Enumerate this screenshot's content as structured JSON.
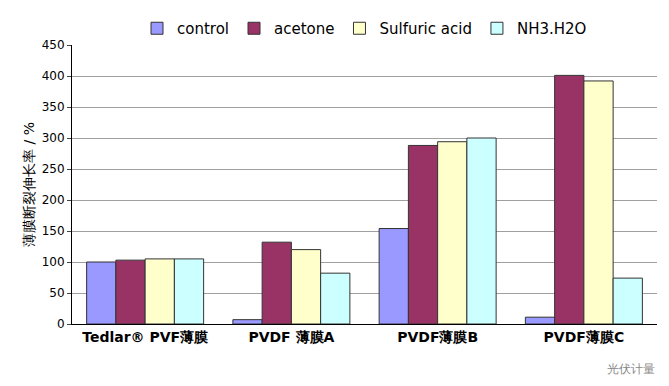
{
  "chart_data": {
    "type": "bar",
    "y_label": "薄膜断裂伸长率 / %",
    "categories": [
      "Tedlar® PVF薄膜",
      "PVDF 薄膜A",
      "PVDF薄膜B",
      "PVDF薄膜C"
    ],
    "series": [
      {
        "name": "control",
        "color": "#9999ff",
        "values": [
          100,
          7,
          154,
          11
        ]
      },
      {
        "name": "acetone",
        "color": "#993366",
        "values": [
          103,
          132,
          288,
          401
        ]
      },
      {
        "name": "Sulfuric acid",
        "color": "#ffffcc",
        "values": [
          105,
          120,
          294,
          392
        ]
      },
      {
        "name": "NH3.H2O",
        "color": "#ccffff",
        "values": [
          105,
          82,
          300,
          74
        ]
      }
    ],
    "ylim": [
      0,
      450
    ],
    "yticks": [
      0,
      50,
      100,
      150,
      200,
      250,
      300,
      350,
      400,
      450
    ],
    "grid": true,
    "legend": "top",
    "annotations": [
      "光伏计量"
    ]
  }
}
